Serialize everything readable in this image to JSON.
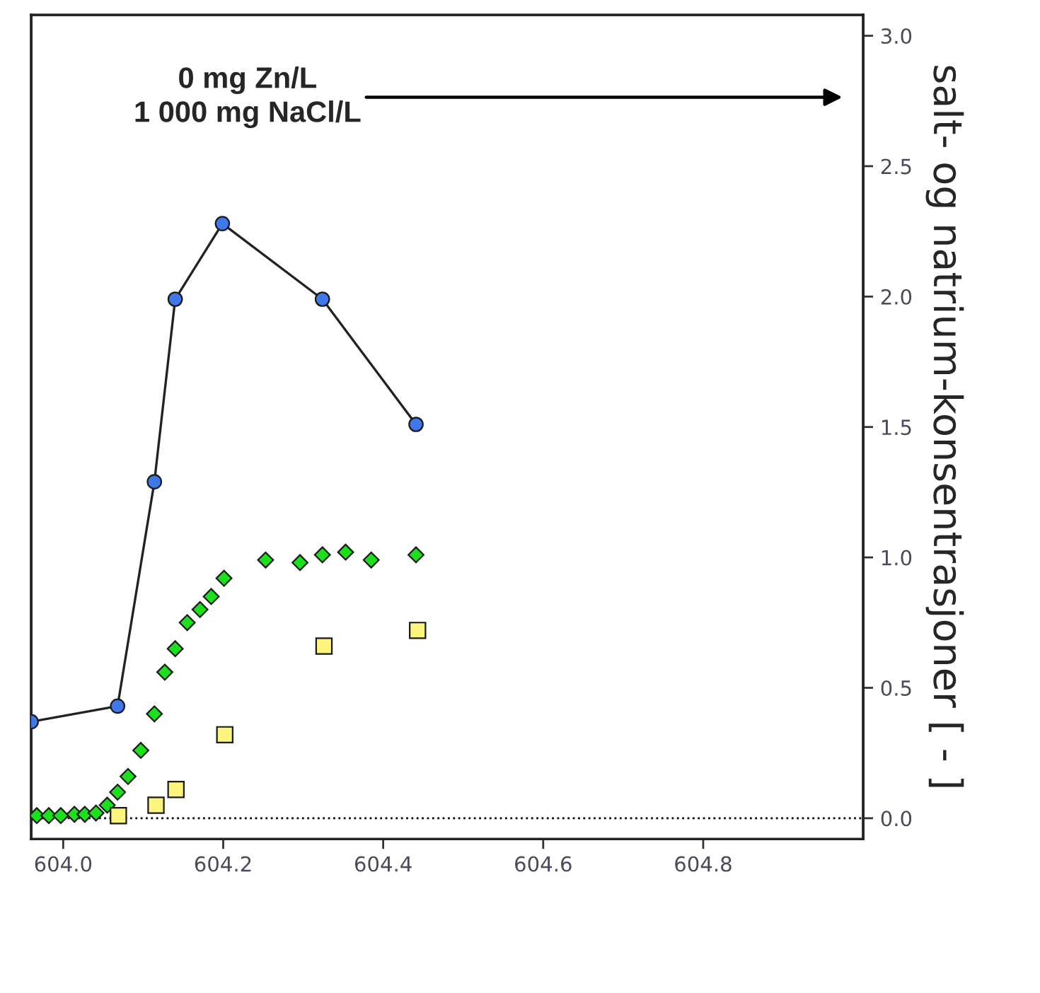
{
  "chart_data": {
    "type": "scatter",
    "y2label": "salt- og natrium-konsentrasjoner [ - ]",
    "annotations": [
      "0 mg Zn/L\n1 000 mg NaCl/L"
    ],
    "xlim": [
      603.96,
      605.0
    ],
    "xticks": [
      {
        "value": 604.0,
        "label": "604.0"
      },
      604.2,
      604.4,
      604.6,
      604.8
    ],
    "y2lim": [
      -0.08,
      3.08
    ],
    "y2ticks": [
      {
        "value": 0,
        "label": "0.0"
      },
      0.5,
      {
        "value": 1,
        "label": "1.0"
      },
      1.5,
      {
        "value": 2,
        "label": "2.0"
      },
      2.5,
      {
        "value": 3,
        "label": "3.0"
      }
    ],
    "grid": false,
    "legend": false,
    "ref_lines": [
      {
        "axis": "y2",
        "value": 0,
        "line_style": "dotted",
        "color": "#000000"
      }
    ],
    "series": [
      {
        "type": "line",
        "axis": "y2",
        "marker": "circle",
        "line_style": "solid",
        "color": "#3f78e8",
        "x": [
          603.96,
          604.068,
          604.114,
          604.14,
          604.199,
          604.324,
          604.441
        ],
        "values": [
          0.37,
          0.43,
          1.29,
          1.99,
          2.28,
          1.99,
          1.51
        ]
      },
      {
        "axis": "y2",
        "marker": "diamond",
        "color": "#1de01d",
        "x": [
          603.967,
          603.982,
          603.997,
          604.014,
          604.027,
          604.041,
          604.055,
          604.068,
          604.081,
          604.097,
          604.114,
          604.127,
          604.14,
          604.155,
          604.171,
          604.185,
          604.201,
          604.253,
          604.296,
          604.324,
          604.353,
          604.385,
          604.441
        ],
        "values": [
          0.01,
          0.01,
          0.01,
          0.015,
          0.015,
          0.02,
          0.05,
          0.1,
          0.16,
          0.26,
          0.4,
          0.56,
          0.65,
          0.75,
          0.8,
          0.85,
          0.92,
          0.99,
          0.98,
          1.01,
          1.02,
          0.99,
          1.01
        ]
      },
      {
        "axis": "y2",
        "marker": "square",
        "color": "#fcf47c",
        "x": [
          604.069,
          604.116,
          604.141,
          604.202,
          604.326,
          604.443
        ],
        "values": [
          0.01,
          0.05,
          0.11,
          0.32,
          0.66,
          0.72
        ]
      }
    ]
  }
}
